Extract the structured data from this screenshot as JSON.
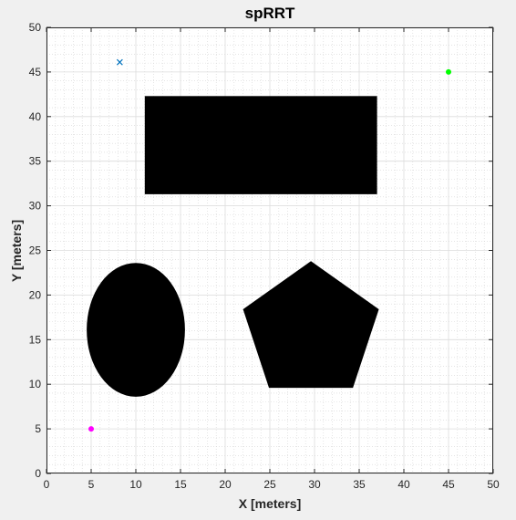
{
  "chart_data": {
    "type": "scatter",
    "title": "spRRT",
    "xlabel": "X [meters]",
    "ylabel": "Y [meters]",
    "xlim": [
      0,
      50
    ],
    "ylim": [
      0,
      50
    ],
    "xticks": [
      0,
      5,
      10,
      15,
      20,
      25,
      30,
      35,
      40,
      45,
      50
    ],
    "yticks": [
      0,
      5,
      10,
      15,
      20,
      25,
      30,
      35,
      40,
      45,
      50
    ],
    "grid": true,
    "minor_grid_step": 1,
    "points": [
      {
        "x": 8.2,
        "y": 46.1,
        "marker": "x",
        "color": "#0072bd"
      },
      {
        "x": 45,
        "y": 45,
        "marker": "dot",
        "color": "#00ff00"
      },
      {
        "x": 5,
        "y": 5,
        "marker": "dot",
        "color": "#ff00ff"
      }
    ],
    "obstacles": [
      {
        "shape": "rectangle",
        "x_min": 11,
        "x_max": 37,
        "y_min": 31.3,
        "y_max": 42.3,
        "color": "#000000"
      },
      {
        "shape": "ellipse",
        "cx": 10,
        "cy": 16.1,
        "rx": 5.5,
        "ry": 7.5,
        "color": "#000000"
      },
      {
        "shape": "polygon",
        "vertices": [
          [
            29.6,
            23.8
          ],
          [
            37.2,
            18.4
          ],
          [
            34.3,
            9.6
          ],
          [
            24.9,
            9.6
          ],
          [
            22,
            18.4
          ]
        ],
        "color": "#000000"
      }
    ]
  }
}
